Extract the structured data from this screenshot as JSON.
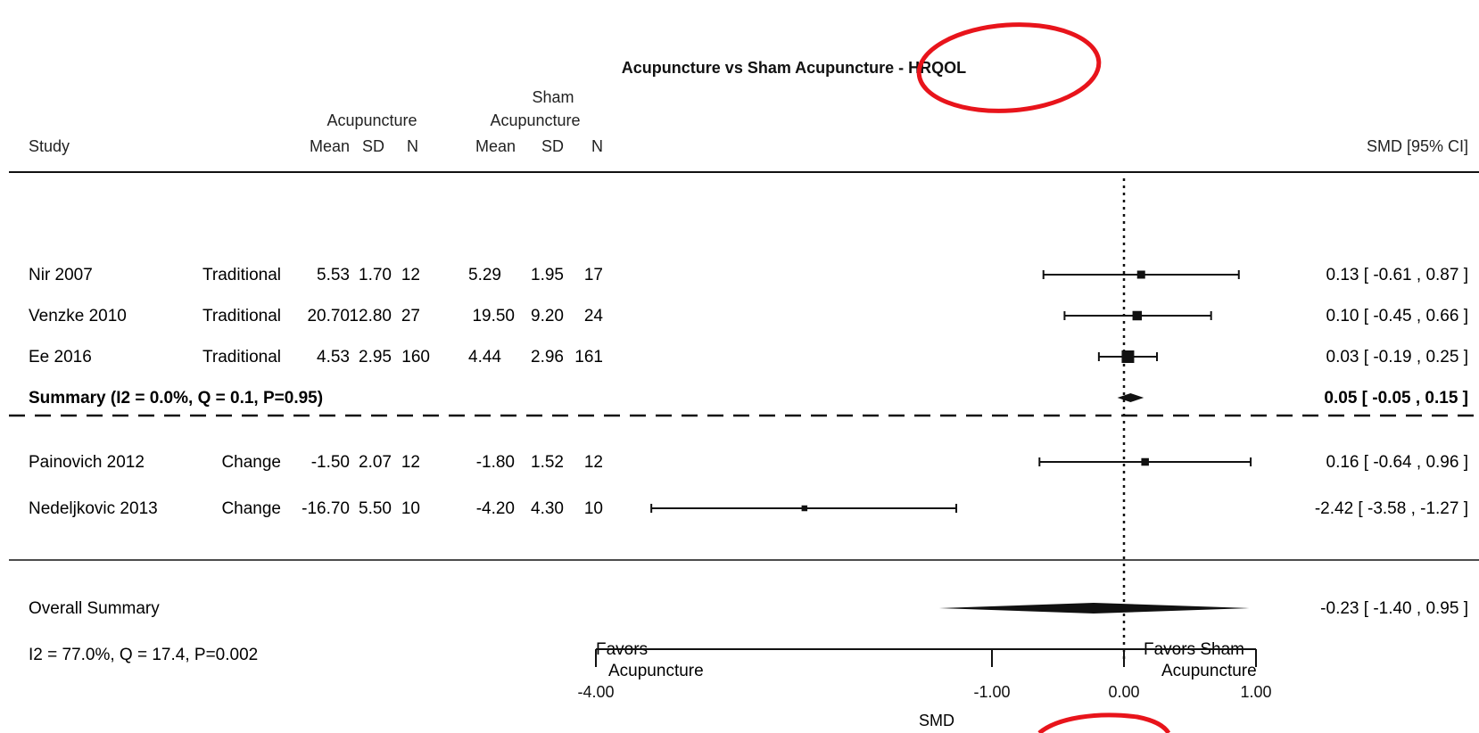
{
  "chart_data": {
    "type": "forest",
    "title": "Acupuncture vs Sham Acupuncture - HRQOL",
    "header": {
      "study": "Study",
      "acu_group": "Acupuncture",
      "sham_group_line1": "Sham",
      "sham_group_line2": "Acupuncture",
      "cols": [
        "Mean",
        "SD",
        "N",
        "Mean",
        "SD",
        "N"
      ],
      "effect": "SMD [95% CI]"
    },
    "groups": [
      {
        "studies": [
          {
            "study": "Nir 2007",
            "type": "Traditional",
            "acu_mean": "5.53",
            "acu_sd": "1.70",
            "acu_n": "12",
            "sham_mean": "5.29",
            "sham_sd": "1.95",
            "sham_n": "17",
            "smd": 0.13,
            "lo": -0.61,
            "hi": 0.87,
            "weight": 0.5,
            "ci_text": "0.13 [ -0.61 ,  0.87 ]"
          },
          {
            "study": "Venzke 2010",
            "type": "Traditional",
            "acu_mean": "20.70",
            "acu_sd": "12.80",
            "acu_n": "27",
            "sham_mean": "19.50",
            "sham_sd": "9.20",
            "sham_n": "24",
            "smd": 0.1,
            "lo": -0.45,
            "hi": 0.66,
            "weight": 0.65,
            "ci_text": "0.10 [ -0.45 ,  0.66 ]"
          },
          {
            "study": "Ee 2016",
            "type": "Traditional",
            "acu_mean": "4.53",
            "acu_sd": "2.95",
            "acu_n": "160",
            "sham_mean": "4.44",
            "sham_sd": "2.96",
            "sham_n": "161",
            "smd": 0.03,
            "lo": -0.19,
            "hi": 0.25,
            "weight": 1.0,
            "ci_text": "0.03 [ -0.19 ,  0.25 ]"
          }
        ],
        "summary": {
          "label_bold": "Summary",
          "label_rest": " (I2 = 0.0%, Q = 0.1, P=0.95)",
          "smd": 0.05,
          "lo": -0.05,
          "hi": 0.15,
          "ci_text": "0.05 [ -0.05 , 0.15 ]"
        }
      },
      {
        "studies": [
          {
            "study": "Painovich 2012",
            "type": "Change",
            "acu_mean": "-1.50",
            "acu_sd": "2.07",
            "acu_n": "12",
            "sham_mean": "-1.80",
            "sham_sd": "1.52",
            "sham_n": "12",
            "smd": 0.16,
            "lo": -0.64,
            "hi": 0.96,
            "weight": 0.45,
            "ci_text": "0.16 [ -0.64 ,  0.96 ]"
          },
          {
            "study": "Nedeljkovic 2013",
            "type": "Change",
            "acu_mean": "-16.70",
            "acu_sd": "5.50",
            "acu_n": "10",
            "sham_mean": "-4.20",
            "sham_sd": "4.30",
            "sham_n": "10",
            "smd": -2.42,
            "lo": -3.58,
            "hi": -1.27,
            "weight": 0.25,
            "ci_text": "-2.42 [ -3.58 , -1.27 ]"
          }
        ]
      }
    ],
    "overall": {
      "label": "Overall Summary",
      "stats": "I2 = 77.0%, Q = 17.4, P=0.002",
      "smd": -0.23,
      "lo": -1.4,
      "hi": 0.95,
      "ci_text": "-0.23 [ -1.40 ,  0.95 ]"
    },
    "favors_left_line1": "Favors",
    "favors_left_line2": "Acupuncture",
    "favors_right_line1": "Favors Sham",
    "favors_right_line2": "Acupuncture",
    "xlim": [
      -4.0,
      1.0
    ],
    "xticks": [
      -4.0,
      -1.0,
      0.0,
      1.0
    ],
    "xtick_labels": [
      "-4.00",
      "-1.00",
      "0.00",
      "1.00"
    ],
    "xlabel": "SMD",
    "reference_line": 0.0
  },
  "annotations": {
    "circle_color": "#e8141b",
    "line_color": "#111111"
  }
}
